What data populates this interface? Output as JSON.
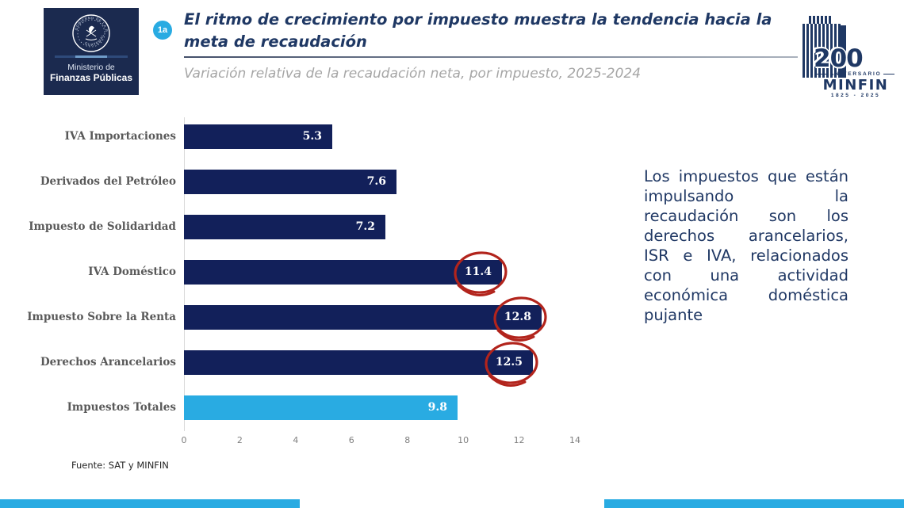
{
  "slide": {
    "badge": "1a",
    "title_line1": "El ritmo de crecimiento por impuesto muestra la tendencia hacia la",
    "title_line2": "meta de recaudación",
    "subtitle": "Variación relativa de la recaudación neta, por impuesto, 2025-2024"
  },
  "ministry_logo": {
    "emblem_top_text": "GOBIERNO DE LA REPÚBLICA",
    "emblem_bottom_text": "GUATEMALA",
    "line1": "Ministerio de",
    "line2": "Finanzas Públicas"
  },
  "anniversary_logo": {
    "number": "200",
    "word": "ANIVERSARIO",
    "name": "MINFIN",
    "years": "1825 - 2025"
  },
  "chart_data": {
    "type": "bar",
    "orientation": "horizontal",
    "title": "El ritmo de crecimiento por impuesto muestra la tendencia hacia la meta de recaudación",
    "subtitle": "Variación relativa de la recaudación neta, por impuesto, 2025-2024",
    "categories": [
      "IVA Importaciones",
      "Derivados del Petróleo",
      "Impuesto de Solidaridad",
      "IVA Doméstico",
      "Impuesto Sobre la Renta",
      "Derechos Arancelarios",
      "Impuestos Totales"
    ],
    "values": [
      5.3,
      7.6,
      7.2,
      11.4,
      12.8,
      12.5,
      9.8
    ],
    "bar_colors": [
      "#12205a",
      "#12205a",
      "#12205a",
      "#12205a",
      "#12205a",
      "#12205a",
      "#29abe2"
    ],
    "circled_flags": [
      false,
      false,
      false,
      true,
      true,
      true,
      false
    ],
    "circled_values": [
      11.4,
      12.8,
      12.5
    ],
    "xlim": [
      0,
      14
    ],
    "x_ticks": [
      0,
      2,
      4,
      6,
      8,
      10,
      12,
      14
    ],
    "grid": false,
    "legend": false,
    "value_label_color": "#ffffff",
    "annotation_circle_color": "#b2241c"
  },
  "annotation": {
    "text": "Los impuestos que están impulsando la recaudación son los derechos arancelarios, ISR e IVA, relacionados con una actividad económica doméstica pujante"
  },
  "footer": {
    "source": "Fuente: SAT y MINFIN"
  },
  "colors": {
    "navy_bar": "#12205a",
    "cyan": "#29abe2",
    "title_navy": "#1f3864",
    "label_gray": "#595959",
    "axis_gray": "#7f7f7f",
    "circle_red": "#b2241c",
    "logo_bg": "#1b2a4f"
  }
}
